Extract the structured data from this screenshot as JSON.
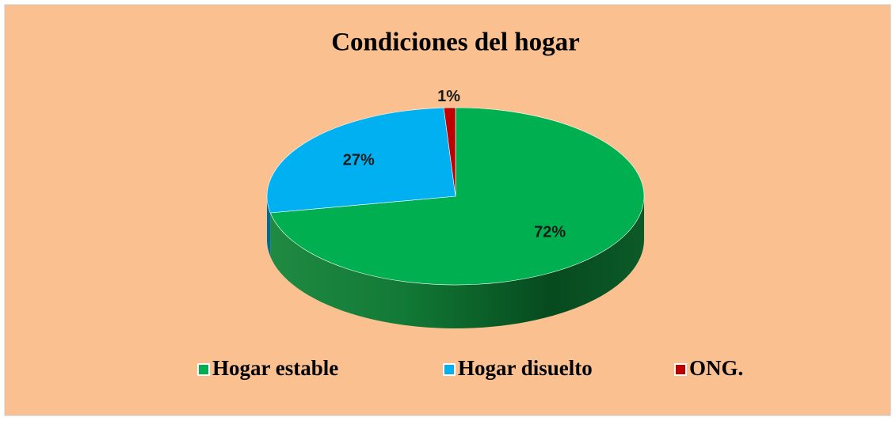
{
  "chart_data": {
    "type": "pie",
    "title": "Condiciones del hogar",
    "categories": [
      "Hogar estable",
      "Hogar disuelto",
      "ONG."
    ],
    "values": [
      72,
      27,
      1
    ],
    "value_labels": [
      "72%",
      "27%",
      "1%"
    ],
    "colors": [
      "#00b050",
      "#00b0f0",
      "#c00000"
    ],
    "legend": "bottom"
  }
}
